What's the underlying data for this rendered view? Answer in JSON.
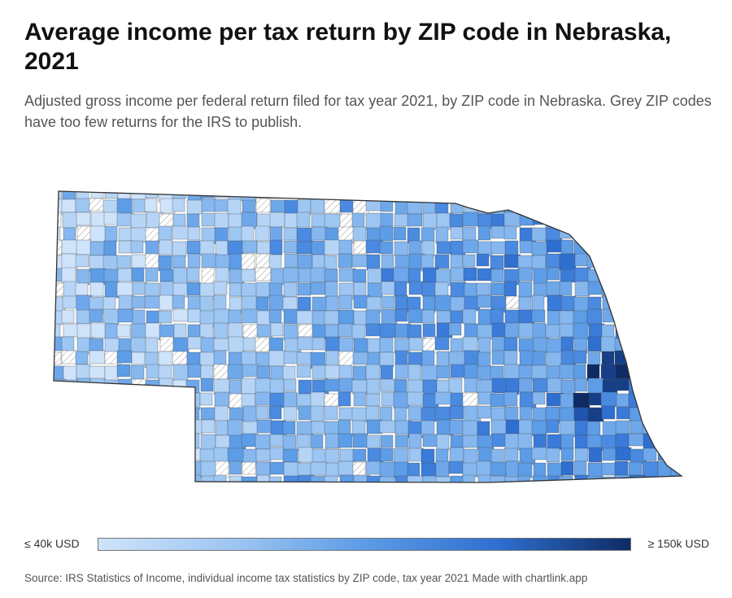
{
  "header": {
    "title": "Average income per tax return by ZIP code in Nebraska, 2021",
    "subtitle": "Adjusted gross income per federal return filed for tax year 2021, by ZIP code in Nebraska. Grey ZIP codes have too few returns for the IRS to publish."
  },
  "legend": {
    "min_label": "≤ 40k USD",
    "max_label": "≥ 150k USD",
    "colors": [
      "#cfe3fa",
      "#9ec6f2",
      "#5d9ce6",
      "#2f6fd0",
      "#0e2b64"
    ]
  },
  "map": {
    "region": "Nebraska",
    "fill_colors": [
      "#cfe3fa",
      "#b6d5f6",
      "#9ec6f2",
      "#86b7ee",
      "#6fa8ea",
      "#5d9ce6",
      "#4a8ae0",
      "#3a7ad8",
      "#2f6fd0",
      "#1f55ad",
      "#163f87",
      "#0e2b64"
    ],
    "no_data_fill": "hatched-white"
  },
  "footer": {
    "source": "Source: IRS Statistics of Income, individual income tax statistics by ZIP code, tax year 2021 Made with chartlink.app"
  }
}
